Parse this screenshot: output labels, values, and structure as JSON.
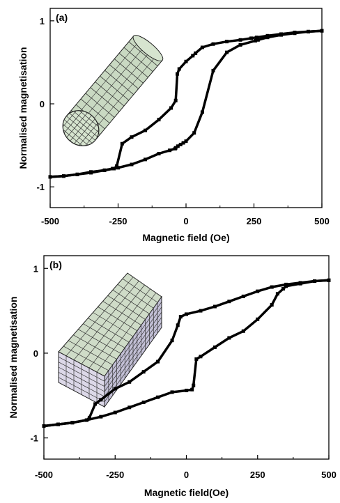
{
  "chart_data": [
    {
      "type": "line",
      "panel_label": "(a)",
      "xlabel": "Magnetic field (Oe)",
      "ylabel": "Normalised magnetisation",
      "xlim": [
        -500,
        500
      ],
      "ylim": [
        -1.25,
        1.15
      ],
      "xticks": [
        -500,
        -250,
        0,
        250,
        500
      ],
      "xtick_labels": [
        "-500",
        "-250",
        "0",
        "250",
        "500"
      ],
      "yticks": [
        -1,
        0,
        1
      ],
      "ytick_labels": [
        "-1",
        "0",
        "1"
      ],
      "grid": false,
      "legend": "none",
      "inset_icon": "cylinder-mesh-icon",
      "series": [
        {
          "x": [
            -500,
            -450,
            -400,
            -350,
            -300,
            -270,
            -250,
            -200,
            -150,
            -100,
            -60,
            -40,
            -38,
            -30,
            -20,
            -10,
            0,
            30,
            60,
            100,
            150,
            200,
            255,
            265,
            300,
            350,
            400,
            450,
            500
          ],
          "y": [
            -0.88,
            -0.87,
            -0.85,
            -0.82,
            -0.8,
            -0.78,
            -0.77,
            -0.73,
            -0.67,
            -0.6,
            -0.56,
            -0.54,
            -0.53,
            -0.51,
            -0.49,
            -0.47,
            -0.45,
            -0.35,
            -0.1,
            0.4,
            0.62,
            0.71,
            0.76,
            0.77,
            0.8,
            0.83,
            0.85,
            0.87,
            0.88
          ]
        },
        {
          "x": [
            -500,
            -450,
            -400,
            -350,
            -300,
            -265,
            -255,
            -235,
            -200,
            -150,
            -100,
            -55,
            -38,
            -32,
            -25,
            0,
            25,
            35,
            60,
            100,
            150,
            200,
            240,
            260,
            300,
            350,
            400,
            450,
            500
          ],
          "y": [
            -0.88,
            -0.87,
            -0.85,
            -0.83,
            -0.8,
            -0.78,
            -0.75,
            -0.48,
            -0.4,
            -0.32,
            -0.19,
            -0.05,
            0.04,
            0.36,
            0.42,
            0.51,
            0.58,
            0.61,
            0.68,
            0.72,
            0.75,
            0.77,
            0.79,
            0.8,
            0.82,
            0.84,
            0.86,
            0.87,
            0.88
          ]
        }
      ]
    },
    {
      "type": "line",
      "panel_label": "(b)",
      "xlabel": "Magnetic field(Oe)",
      "ylabel": "Normalised magnetisation",
      "xlim": [
        -500,
        500
      ],
      "ylim": [
        -1.25,
        1.15
      ],
      "xticks": [
        -500,
        -250,
        0,
        250,
        500
      ],
      "xtick_labels": [
        "-500",
        "-250",
        "0",
        "250",
        "500"
      ],
      "yticks": [
        -1,
        0,
        1
      ],
      "ytick_labels": [
        "-1",
        "0",
        "1"
      ],
      "grid": false,
      "legend": "none",
      "inset_icon": "rectangular-prism-mesh-icon",
      "series": [
        {
          "x": [
            -500,
            -450,
            -400,
            -350,
            -300,
            -250,
            -200,
            -150,
            -100,
            -50,
            0,
            20,
            25,
            35,
            50,
            100,
            150,
            200,
            250,
            300,
            320,
            340,
            350,
            400,
            450,
            500
          ],
          "y": [
            -0.86,
            -0.84,
            -0.82,
            -0.79,
            -0.75,
            -0.7,
            -0.64,
            -0.58,
            -0.52,
            -0.46,
            -0.44,
            -0.43,
            -0.38,
            -0.07,
            -0.04,
            0.07,
            0.18,
            0.26,
            0.4,
            0.57,
            0.7,
            0.76,
            0.79,
            0.82,
            0.85,
            0.86
          ]
        },
        {
          "x": [
            -500,
            -450,
            -400,
            -350,
            -340,
            -320,
            -300,
            -250,
            -200,
            -150,
            -100,
            -50,
            -30,
            -20,
            0,
            50,
            100,
            150,
            200,
            250,
            300,
            350,
            400,
            450,
            500
          ],
          "y": [
            -0.86,
            -0.84,
            -0.82,
            -0.79,
            -0.76,
            -0.6,
            -0.55,
            -0.42,
            -0.34,
            -0.22,
            -0.1,
            0.15,
            0.33,
            0.43,
            0.46,
            0.5,
            0.55,
            0.61,
            0.67,
            0.73,
            0.78,
            0.81,
            0.83,
            0.85,
            0.86
          ]
        }
      ]
    }
  ]
}
